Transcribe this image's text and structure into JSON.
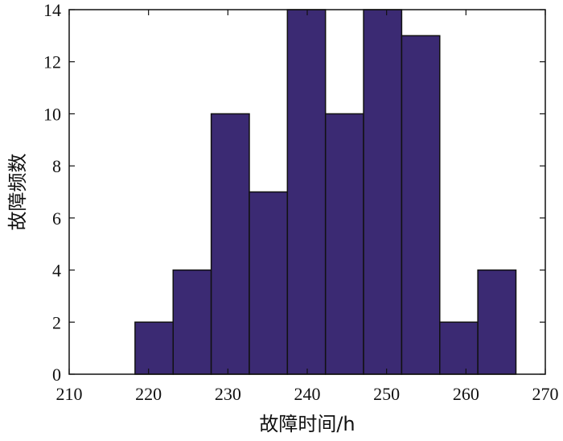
{
  "chart_data": {
    "type": "bar",
    "title": "",
    "xlabel": "故障时间/h",
    "ylabel": "故障频数",
    "xlim": [
      210,
      270
    ],
    "ylim": [
      0,
      14
    ],
    "x_ticks": [
      210,
      220,
      230,
      240,
      250,
      260,
      270
    ],
    "y_ticks": [
      0,
      2,
      4,
      6,
      8,
      10,
      12,
      14
    ],
    "bin_edges": [
      218.3,
      223.1,
      227.9,
      232.7,
      237.5,
      242.3,
      247.1,
      251.9,
      256.7,
      261.5,
      266.3
    ],
    "values": [
      2,
      4,
      10,
      7,
      14,
      10,
      14,
      13,
      2,
      4
    ],
    "bar_color": "#3b2a73",
    "grid": false
  }
}
